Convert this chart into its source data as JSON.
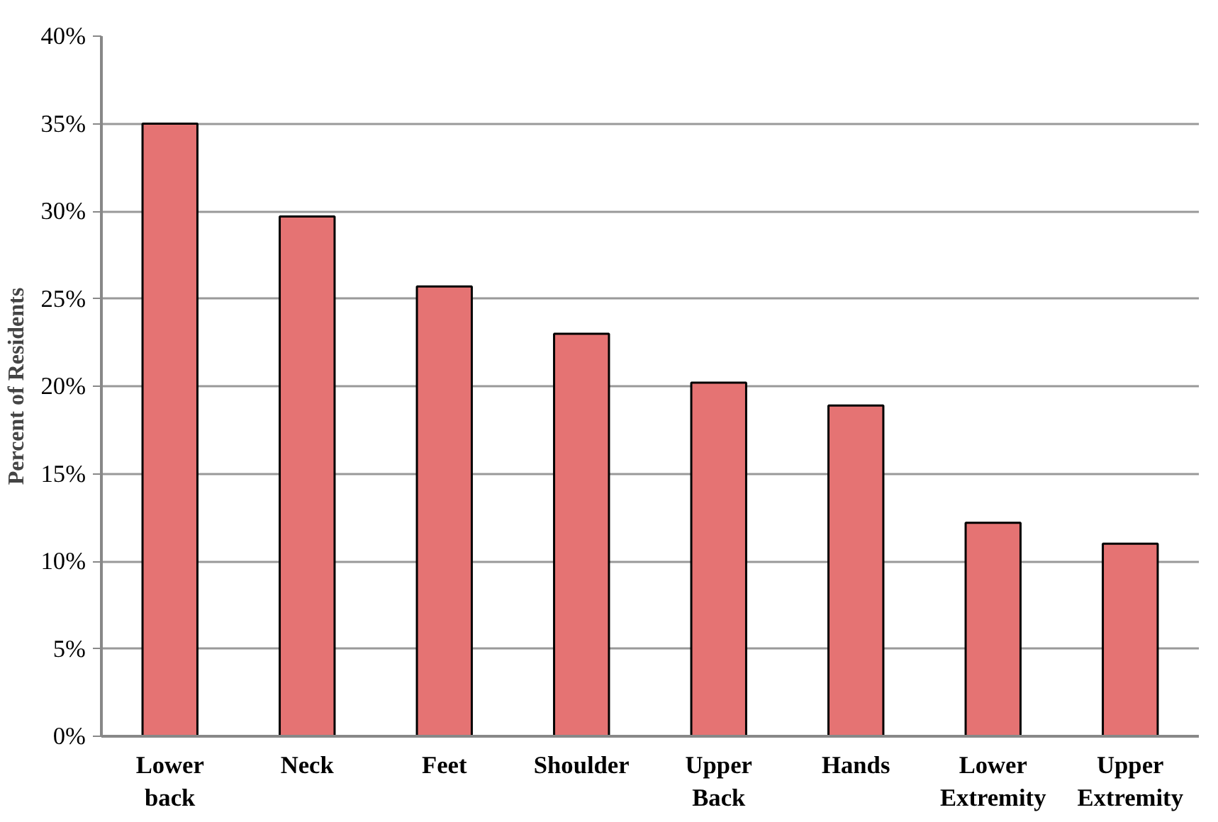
{
  "chart_data": {
    "type": "bar",
    "ylabel": "Percent of Residents",
    "categories": [
      "Lower\nback",
      "Neck",
      "Feet",
      "Shoulder",
      "Upper\nBack",
      "Hands",
      "Lower\nExtremity",
      "Upper\nExtremity"
    ],
    "values": [
      35.0,
      29.7,
      25.7,
      23.0,
      20.2,
      18.9,
      12.2,
      11.0
    ],
    "color": "#e57373",
    "ylim": [
      0,
      40
    ],
    "yticks": [
      {
        "value": 0,
        "label": "0%"
      },
      {
        "value": 5,
        "label": "5%"
      },
      {
        "value": 10,
        "label": "10%"
      },
      {
        "value": 15,
        "label": "15%"
      },
      {
        "value": 20,
        "label": "20%"
      },
      {
        "value": 25,
        "label": "25%"
      },
      {
        "value": 30,
        "label": "30%"
      },
      {
        "value": 35,
        "label": "35%"
      },
      {
        "value": 40,
        "label": "40%"
      }
    ],
    "grid": "y"
  }
}
